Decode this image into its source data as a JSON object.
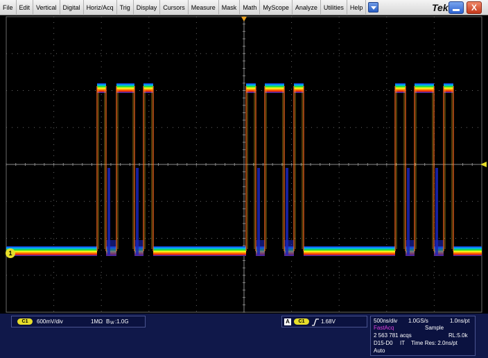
{
  "menu": {
    "items": [
      "File",
      "Edit",
      "Vertical",
      "Digital",
      "Horiz/Acq",
      "Trig",
      "Display",
      "Cursors",
      "Measure",
      "Mask",
      "Math",
      "MyScope",
      "Analyze",
      "Utilities",
      "Help"
    ],
    "brand": "Tek",
    "close_glyph": "X"
  },
  "display": {
    "channel_marker": "1",
    "background": "#000000",
    "grid_color": "#6a6a6a",
    "trigger_color": "#e8a020"
  },
  "status": {
    "channel": {
      "chip": "C1",
      "scale": "600mV/div",
      "impedance": "1MΩ",
      "bandwidth_b": "B",
      "bandwidth_w": "W",
      "bandwidth_value": ":1.0G"
    },
    "trigger": {
      "box": "A",
      "chip": "C1",
      "slope_icon": "rising-edge-icon",
      "level": "1.68V"
    },
    "acquisition": {
      "timebase": "500ns/div",
      "sample_rate": "1.0GS/s",
      "resolution_pt": "1.0ns/pt",
      "mode": "FastAcq",
      "mode_color": "#e040e0",
      "sample": "Sample",
      "acqs": "2 563 781 acqs",
      "record_length": "RL:5.0k",
      "digital": "D15-D0",
      "it": "IT",
      "time_res": "Time Res: 2.0ns/pt",
      "trigger_mode": "Auto"
    }
  }
}
